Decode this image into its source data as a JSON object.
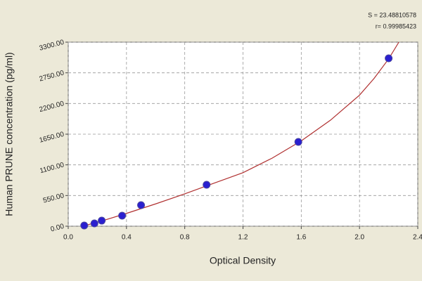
{
  "chart_data": {
    "type": "scatter",
    "xlabel": "Optical Density",
    "ylabel": "Human PRUNE concentration (pg/ml)",
    "annotations": [
      "S = 23.48810578",
      "r= 0.99985423"
    ],
    "xlim": [
      0,
      2.4
    ],
    "ylim": [
      0,
      3300
    ],
    "xticks": [
      {
        "value": 0,
        "label": "0.0"
      },
      0.4,
      0.8,
      1.2,
      1.6,
      {
        "value": 2,
        "label": "2.0"
      },
      2.4
    ],
    "yticks": [
      {
        "value": 0,
        "label": "0.00"
      },
      {
        "value": 550,
        "label": "550.00"
      },
      {
        "value": 1100,
        "label": "1100.00"
      },
      {
        "value": 1650,
        "label": "1650.00"
      },
      {
        "value": 2200,
        "label": "2200.00"
      },
      {
        "value": 2750,
        "label": "2750.00"
      },
      {
        "value": 3300,
        "label": "3300.00"
      }
    ],
    "grid": true,
    "series": [
      {
        "type": "scatter",
        "color": "#2a1fd0",
        "x": [
          0.11,
          0.18,
          0.23,
          0.37,
          0.5,
          0.95,
          1.58,
          2.2
        ],
        "values": [
          13,
          50,
          100,
          189,
          378,
          743,
          1511,
          3010
        ]
      },
      {
        "type": "line",
        "color": "#b03030",
        "x": [
          0.1,
          0.25,
          0.4,
          0.6,
          0.8,
          1.0,
          1.2,
          1.4,
          1.6,
          1.8,
          2.0,
          2.1,
          2.2,
          2.27
        ],
        "values": [
          0,
          110,
          230,
          400,
          580,
          770,
          960,
          1220,
          1530,
          1900,
          2350,
          2650,
          3000,
          3300
        ]
      }
    ]
  }
}
